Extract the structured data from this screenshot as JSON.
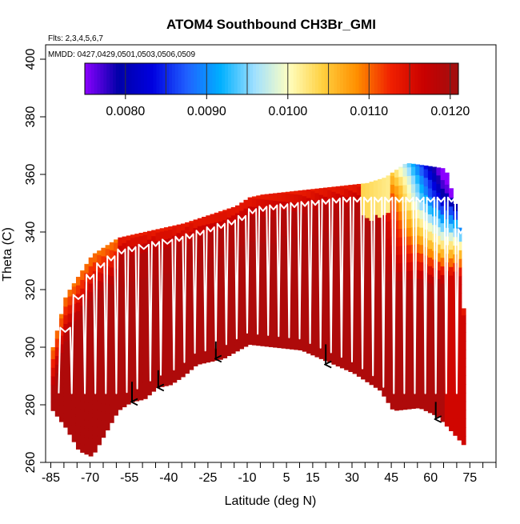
{
  "chart_data": {
    "type": "heatmap",
    "title": "ATOM4 Southbound CH3Br_GMI",
    "flights_note": "Flts: 2,3,4,5,6,7",
    "dates_note": "MMDD: 0427,0429,0501,0503,0506,0509",
    "xlabel": "Latitude (deg N)",
    "ylabel": "Theta (C)",
    "xlim": [
      -87,
      85
    ],
    "ylim": [
      260,
      405
    ],
    "x_ticks": [
      -85,
      -80,
      -75,
      -70,
      -65,
      -60,
      -55,
      -50,
      -45,
      -40,
      -35,
      -30,
      -25,
      -20,
      -15,
      -10,
      -5,
      0,
      5,
      10,
      15,
      20,
      25,
      30,
      35,
      40,
      45,
      50,
      55,
      60,
      65,
      70,
      75,
      80,
      85
    ],
    "x_tick_labels": [
      "-85",
      "-70",
      "-55",
      "-40",
      "-25",
      "-10",
      "5",
      "15",
      "30",
      "45",
      "60",
      "75"
    ],
    "x_tick_label_values": [
      -85,
      -70,
      -55,
      -40,
      -25,
      -10,
      5,
      15,
      30,
      45,
      60,
      75
    ],
    "y_ticks": [
      260,
      280,
      300,
      320,
      340,
      360,
      380,
      400
    ],
    "y_tick_labels": [
      "260",
      "280",
      "300",
      "320",
      "340",
      "360",
      "380",
      "400"
    ],
    "colorbar": {
      "min": 0.0075,
      "max": 0.0121,
      "tick_values": [
        0.008,
        0.009,
        0.01,
        0.011,
        0.012
      ],
      "tick_labels": [
        "0.0080",
        "0.0090",
        "0.0100",
        "0.0110",
        "0.0120"
      ],
      "colors": [
        "#8b00ff",
        "#0000a8",
        "#0000e0",
        "#2060ff",
        "#00b0ff",
        "#a0e0ff",
        "#ffffc0",
        "#ffd040",
        "#ff9000",
        "#f02000",
        "#c80000",
        "#a01010"
      ]
    },
    "field": {
      "description_values": "CH3Br mixing ratio along the latitude-theta curtain",
      "bottom_boundary": [
        [
          -85,
          278
        ],
        [
          -80,
          272
        ],
        [
          -75,
          264
        ],
        [
          -70,
          262
        ],
        [
          -65,
          270
        ],
        [
          -60,
          278
        ],
        [
          -55,
          281
        ],
        [
          -50,
          282
        ],
        [
          -45,
          286
        ],
        [
          -40,
          287
        ],
        [
          -35,
          290
        ],
        [
          -30,
          294
        ],
        [
          -20,
          296
        ],
        [
          -10,
          301
        ],
        [
          0,
          300
        ],
        [
          10,
          299
        ],
        [
          20,
          295
        ],
        [
          30,
          291
        ],
        [
          40,
          285
        ],
        [
          45,
          278
        ],
        [
          55,
          279
        ],
        [
          62,
          276
        ],
        [
          70,
          268
        ],
        [
          72,
          266
        ]
      ],
      "top_boundary": [
        [
          -85,
          300
        ],
        [
          -80,
          318
        ],
        [
          -75,
          325
        ],
        [
          -70,
          332
        ],
        [
          -65,
          335
        ],
        [
          -60,
          338
        ],
        [
          -55,
          339
        ],
        [
          -45,
          341
        ],
        [
          -35,
          343
        ],
        [
          -25,
          346
        ],
        [
          -15,
          349
        ],
        [
          -10,
          352
        ],
        [
          -5,
          353
        ],
        [
          5,
          354
        ],
        [
          15,
          355
        ],
        [
          25,
          356
        ],
        [
          35,
          357
        ],
        [
          42,
          359
        ],
        [
          50,
          364
        ],
        [
          58,
          363
        ],
        [
          65,
          362
        ],
        [
          70,
          345
        ],
        [
          72,
          310
        ]
      ],
      "low_value_region": "upper high-latitude north (45 to 72 N, above about 330 K) has low values near 0.0080; upper southern latitudes near 0.0105-0.0110; bulk of the curtain near 0.0115-0.0120"
    },
    "flight_track": {
      "color": "#ffffff",
      "description": "repeated vertical profiles between about 285 and 350 theta at successive latitudes"
    },
    "arrows": [
      {
        "lat": -54,
        "theta_top": 288,
        "theta_bottom": 281
      },
      {
        "lat": -44,
        "theta_top": 292,
        "theta_bottom": 286
      },
      {
        "lat": -22,
        "theta_top": 302,
        "theta_bottom": 296
      },
      {
        "lat": 20,
        "theta_top": 301,
        "theta_bottom": 294
      },
      {
        "lat": 62,
        "theta_top": 281,
        "theta_bottom": 275
      }
    ]
  }
}
